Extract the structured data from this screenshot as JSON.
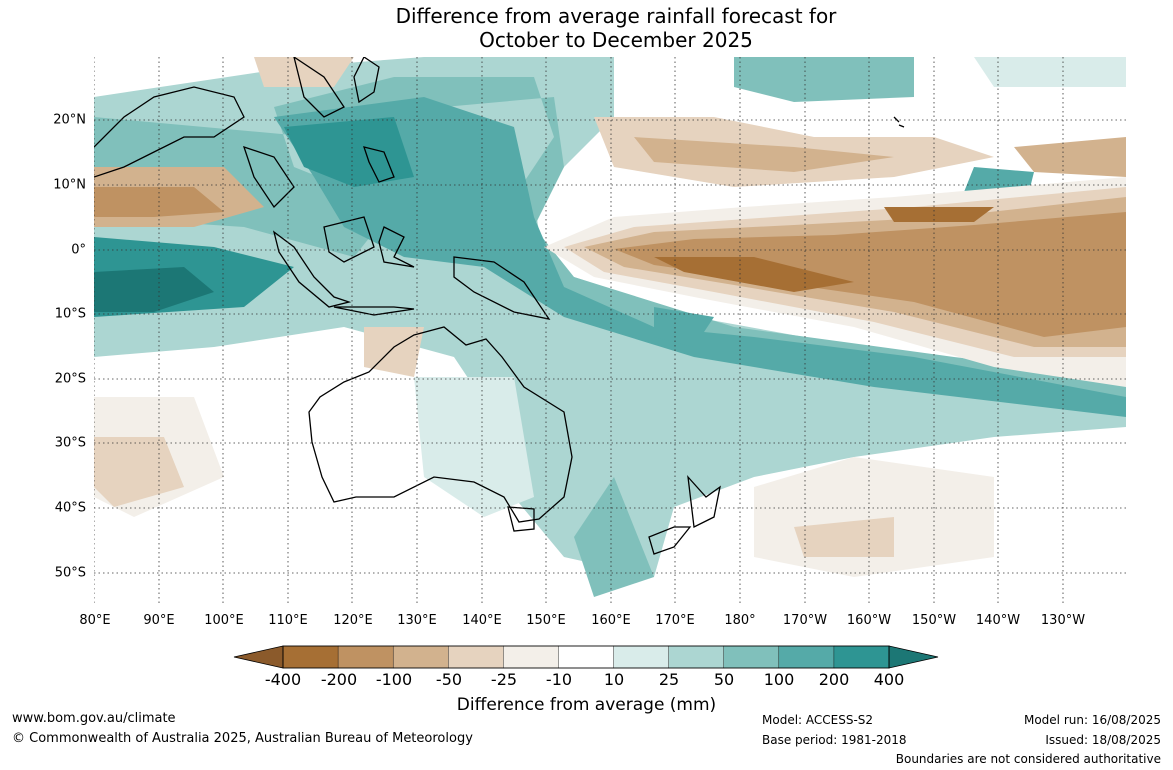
{
  "title": {
    "line1": "Difference from average rainfall forecast for",
    "line2": "October to December 2025"
  },
  "map": {
    "region": "Australia and Pacific",
    "graticule": "dotted",
    "latitude_ticks": [
      "20°N",
      "10°N",
      "0°",
      "10°S",
      "20°S",
      "30°S",
      "40°S",
      "50°S"
    ],
    "longitude_ticks": [
      "80°E",
      "90°E",
      "100°E",
      "110°E",
      "120°E",
      "130°E",
      "140°E",
      "150°E",
      "160°E",
      "170°E",
      "180°",
      "170°W",
      "160°W",
      "150°W",
      "140°W",
      "130°W"
    ]
  },
  "legend": {
    "title": "Difference from average (mm)",
    "labels": [
      "-400",
      "-200",
      "-100",
      "-50",
      "-25",
      "-10",
      "10",
      "25",
      "50",
      "100",
      "200",
      "400"
    ],
    "colors": [
      "#a66f34",
      "#bf9262",
      "#d2b28e",
      "#e6d3bf",
      "#f3efe9",
      "#ffffff",
      "#d9ecea",
      "#acd6d2",
      "#80c0bb",
      "#55aaa8",
      "#2e9593",
      "#1c7775",
      "#8b5a2b"
    ],
    "extend": "both"
  },
  "footer": {
    "website": "www.bom.gov.au/climate",
    "copyright": "© Commonwealth of Australia 2025, Australian Bureau of Meteorology",
    "model": "Model: ACCESS-S2",
    "base_period": "Base period: 1981-2018",
    "model_run": "Model run: 16/08/2025",
    "issued": "Issued: 18/08/2025",
    "disclaimer": "Boundaries are not considered authoritative"
  }
}
